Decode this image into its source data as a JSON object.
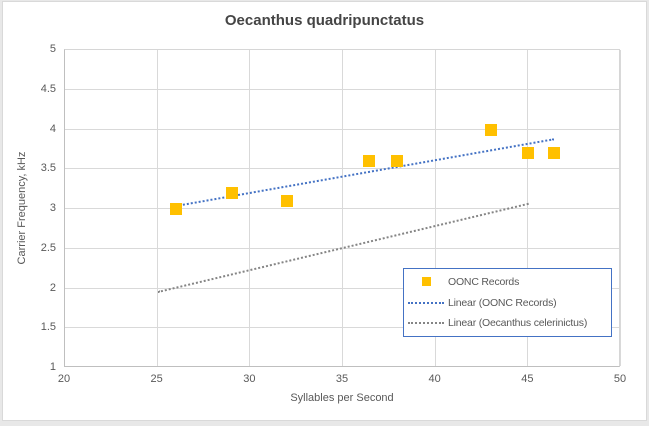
{
  "colors": {
    "accent_blue": "#4472C4",
    "marker_orange": "#FFC000",
    "trendline_gray": "#858585",
    "gridline": "#D9D9D9",
    "axis_line": "#BFBFBF",
    "text": "#595959",
    "title_text": "#454545",
    "chart_border": "#D9D9D9",
    "chart_bg": "#FFFFFF",
    "page_bg": "#E8E8E8",
    "legend_border": "#4472C4"
  },
  "chart_data": {
    "type": "scatter",
    "title": "Oecanthus quadripunctatus",
    "xlabel": "Syllables per Second",
    "ylabel": "Carrier Frequency, kHz",
    "xlim": [
      20,
      50
    ],
    "ylim": [
      1,
      5
    ],
    "x_ticks": [
      20,
      25,
      30,
      35,
      40,
      45,
      50
    ],
    "y_ticks": [
      1,
      1.5,
      2,
      2.5,
      3,
      3.5,
      4,
      4.5,
      5
    ],
    "grid": true,
    "legend_position": "inside-bottom-right",
    "series": [
      {
        "name": "OONC Records",
        "kind": "scatter",
        "marker": "square",
        "color": "#FFC000",
        "points": [
          [
            26,
            3.0
          ],
          [
            29,
            3.2
          ],
          [
            32,
            3.1
          ],
          [
            36.4,
            3.6
          ],
          [
            37.9,
            3.6
          ],
          [
            43,
            4.0
          ],
          [
            45,
            3.7
          ],
          [
            46.4,
            3.7
          ]
        ]
      },
      {
        "name": "Linear (OONC Records)",
        "kind": "trendline",
        "line_style": "dotted",
        "color": "#4472C4",
        "from": [
          26,
          3.04
        ],
        "to": [
          46.4,
          3.88
        ]
      },
      {
        "name": "Linear (Oecanthus celerinictus)",
        "kind": "trendline",
        "line_style": "dotted",
        "color": "#858585",
        "from": [
          25,
          1.96
        ],
        "to": [
          45,
          3.07
        ]
      }
    ],
    "legend_entries": [
      {
        "label": "OONC Records",
        "swatch": "square",
        "color": "#FFC000"
      },
      {
        "label": "Linear (OONC Records)",
        "swatch": "dotted-line",
        "color": "#4472C4"
      },
      {
        "label": "Linear (Oecanthus celerinictus)",
        "swatch": "dotted-line",
        "color": "#858585"
      }
    ]
  }
}
